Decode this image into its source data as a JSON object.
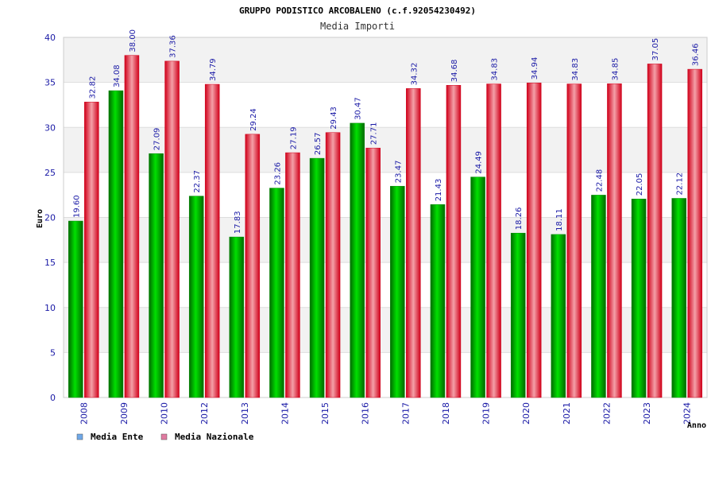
{
  "chart_data": {
    "type": "bar",
    "title": "GRUPPO PODISTICO ARCOBALENO (c.f.92054230492)",
    "subtitle": "Media Importi",
    "xlabel": "Anno",
    "ylabel": "Euro",
    "ylim": [
      0,
      40
    ],
    "yticks": [
      0,
      5,
      10,
      15,
      20,
      25,
      30,
      35,
      40
    ],
    "ytick_labels": [
      "0",
      "5",
      "10",
      "15",
      "20",
      "25",
      "30",
      "35",
      "40"
    ],
    "categories": [
      "2008",
      "2009",
      "2010",
      "2012",
      "2013",
      "2014",
      "2015",
      "2016",
      "2017",
      "2018",
      "2019",
      "2020",
      "2021",
      "2022",
      "2023",
      "2024"
    ],
    "series": [
      {
        "name": "Media Ente",
        "color": "#00b000",
        "legend_color": "#6fa8e8",
        "values": [
          19.6,
          34.08,
          27.09,
          22.37,
          17.83,
          23.26,
          26.57,
          30.47,
          23.47,
          21.43,
          24.49,
          18.26,
          18.11,
          22.48,
          22.05,
          22.12
        ],
        "labels": [
          "19.60",
          "34.08",
          "27.09",
          "22.37",
          "17.83",
          "23.26",
          "26.57",
          "30.47",
          "23.47",
          "21.43",
          "24.49",
          "18.26",
          "18.11",
          "22.48",
          "22.05",
          "22.12"
        ]
      },
      {
        "name": "Media Nazionale",
        "color": "#e8102a",
        "legend_color": "#e07aa0",
        "values": [
          32.82,
          38.0,
          37.36,
          34.79,
          29.24,
          27.19,
          29.43,
          27.71,
          34.32,
          34.68,
          34.83,
          34.94,
          34.83,
          34.85,
          37.05,
          36.46
        ],
        "labels": [
          "32.82",
          "38.00",
          "37.36",
          "34.79",
          "29.24",
          "27.19",
          "29.43",
          "27.71",
          "34.32",
          "34.68",
          "34.83",
          "34.94",
          "34.83",
          "34.85",
          "37.05",
          "36.46"
        ]
      }
    ],
    "legend_position": "bottom-left",
    "grid": true
  }
}
